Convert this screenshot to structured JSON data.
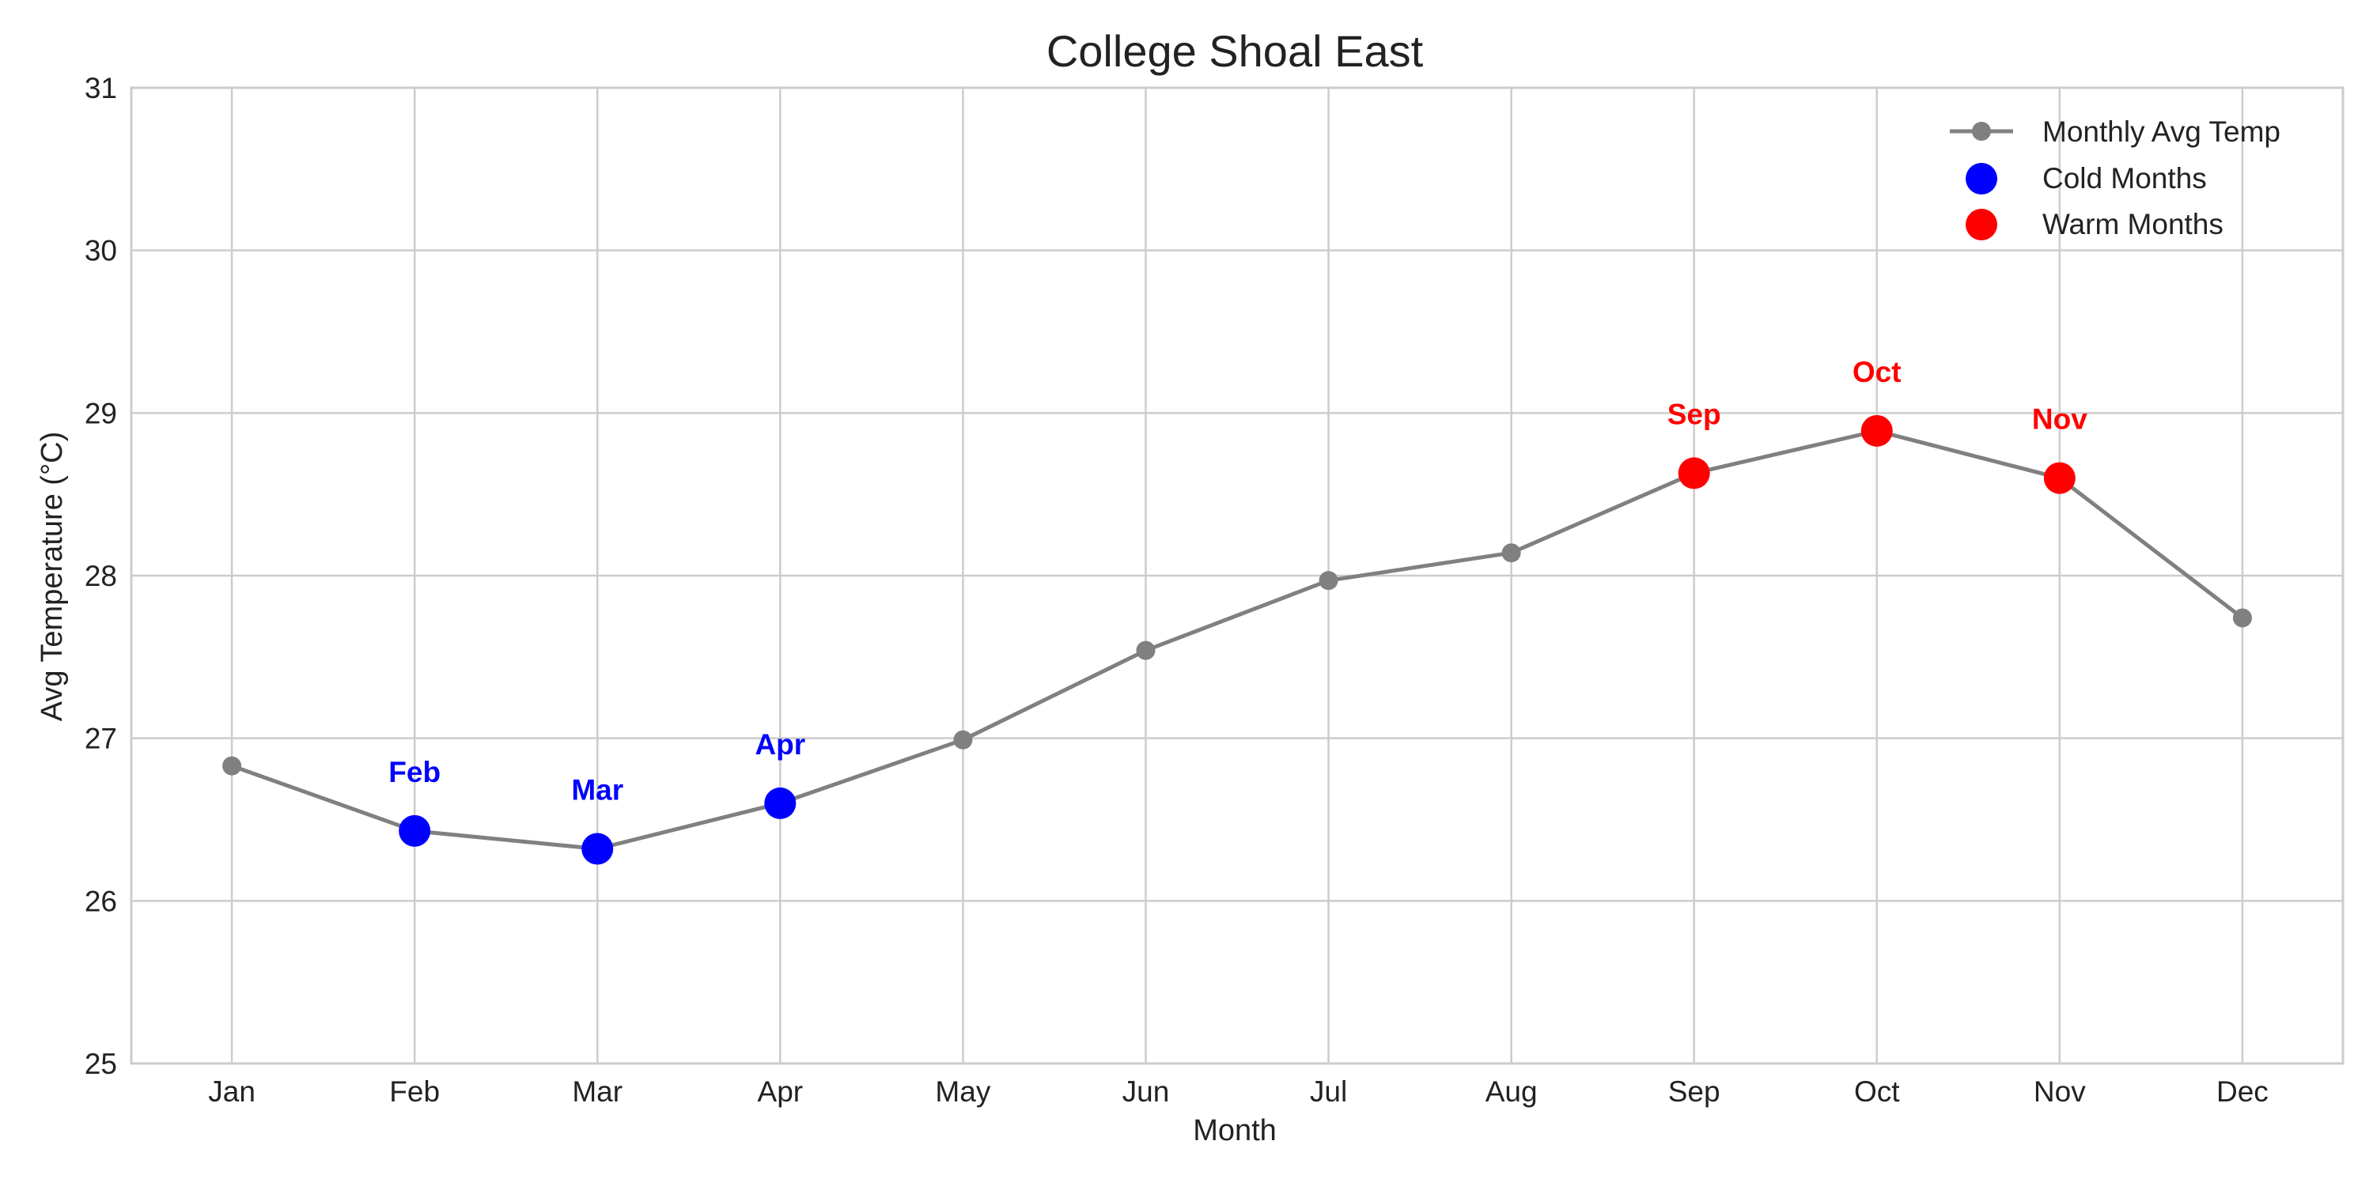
{
  "chart_data": {
    "type": "line",
    "title": "College Shoal East",
    "xlabel": "Month",
    "ylabel": "Avg Temperature (°C)",
    "categories": [
      "Jan",
      "Feb",
      "Mar",
      "Apr",
      "May",
      "Jun",
      "Jul",
      "Aug",
      "Sep",
      "Oct",
      "Nov",
      "Dec"
    ],
    "ylim": [
      25,
      31
    ],
    "yticks": [
      25,
      26,
      27,
      28,
      29,
      30,
      31
    ],
    "grid": true,
    "legend_position": "top-right",
    "series": [
      {
        "name": "Monthly Avg Temp",
        "color": "#808080",
        "values": [
          26.83,
          26.43,
          26.32,
          26.6,
          26.99,
          27.54,
          27.97,
          28.14,
          28.63,
          28.89,
          28.6,
          27.74
        ]
      }
    ],
    "highlights": [
      {
        "name": "Cold Months",
        "color": "#0000ff",
        "months": [
          "Feb",
          "Mar",
          "Apr"
        ]
      },
      {
        "name": "Warm Months",
        "color": "#ff0000",
        "months": [
          "Sep",
          "Oct",
          "Nov"
        ]
      }
    ],
    "annotations": [
      {
        "text": "Feb",
        "month": "Feb",
        "color": "#0000ff"
      },
      {
        "text": "Mar",
        "month": "Mar",
        "color": "#0000ff"
      },
      {
        "text": "Apr",
        "month": "Apr",
        "color": "#0000ff"
      },
      {
        "text": "Sep",
        "month": "Sep",
        "color": "#ff0000"
      },
      {
        "text": "Oct",
        "month": "Oct",
        "color": "#ff0000"
      },
      {
        "text": "Nov",
        "month": "Nov",
        "color": "#ff0000"
      }
    ]
  }
}
